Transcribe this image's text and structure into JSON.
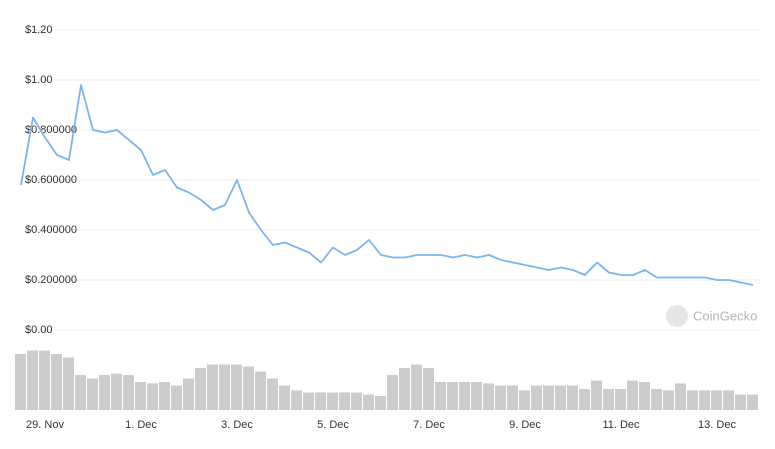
{
  "chart_data": {
    "type": "line",
    "categories": [
      null,
      null,
      "29. Nov",
      null,
      null,
      null,
      null,
      null,
      null,
      null,
      "1. Dec",
      null,
      null,
      null,
      null,
      null,
      null,
      null,
      "3. Dec",
      null,
      null,
      null,
      null,
      null,
      null,
      null,
      "5. Dec",
      null,
      null,
      null,
      null,
      null,
      null,
      null,
      "7. Dec",
      null,
      null,
      null,
      null,
      null,
      null,
      null,
      "9. Dec",
      null,
      null,
      null,
      null,
      null,
      null,
      null,
      "11. Dec",
      null,
      null,
      null,
      null,
      null,
      null,
      null,
      "13. Dec",
      null,
      null,
      null
    ],
    "series": [
      {
        "color": "#7cb5ec",
        "values": [
          0.58,
          0.85,
          0.77,
          0.7,
          0.68,
          0.98,
          0.8,
          0.79,
          0.8,
          0.76,
          0.72,
          0.62,
          0.64,
          0.57,
          0.55,
          0.52,
          0.48,
          0.5,
          0.6,
          0.47,
          0.4,
          0.34,
          0.35,
          0.33,
          0.31,
          0.27,
          0.33,
          0.3,
          0.32,
          0.36,
          0.3,
          0.29,
          0.29,
          0.3,
          0.3,
          0.3,
          0.29,
          0.3,
          0.29,
          0.3,
          0.28,
          0.27,
          0.26,
          0.25,
          0.24,
          0.25,
          0.24,
          0.22,
          0.27,
          0.23,
          0.22,
          0.22,
          0.24,
          0.21,
          0.21,
          0.21,
          0.21,
          0.21,
          0.2,
          0.2,
          0.19,
          0.18
        ]
      },
      {
        "color": "#cccccc",
        "axis": "y2",
        "type": "bar",
        "values": [
          80,
          85,
          85,
          80,
          75,
          50,
          45,
          50,
          52,
          50,
          40,
          38,
          40,
          35,
          45,
          60,
          65,
          65,
          65,
          62,
          55,
          45,
          35,
          28,
          25,
          25,
          25,
          25,
          25,
          22,
          20,
          50,
          60,
          65,
          60,
          40,
          40,
          40,
          40,
          38,
          35,
          35,
          28,
          35,
          35,
          35,
          35,
          30,
          42,
          30,
          30,
          42,
          40,
          30,
          28,
          38,
          28,
          28,
          28,
          28,
          22,
          22
        ]
      }
    ],
    "ylim": [
      0,
      1.2
    ],
    "yticks": [
      {
        "value": 0,
        "label": "$0.00"
      },
      {
        "value": 0.2,
        "label": "$0.200000"
      },
      {
        "value": 0.4,
        "label": "$0.400000"
      },
      {
        "value": 0.6,
        "label": "$0.600000"
      },
      {
        "value": 0.8,
        "label": "$0.800000"
      },
      {
        "value": 1.0,
        "label": "$1.00"
      },
      {
        "value": 1.2,
        "label": "$1.20"
      }
    ],
    "y2lim": [
      0,
      100
    ],
    "grid": true,
    "watermark": "CoinGecko"
  }
}
